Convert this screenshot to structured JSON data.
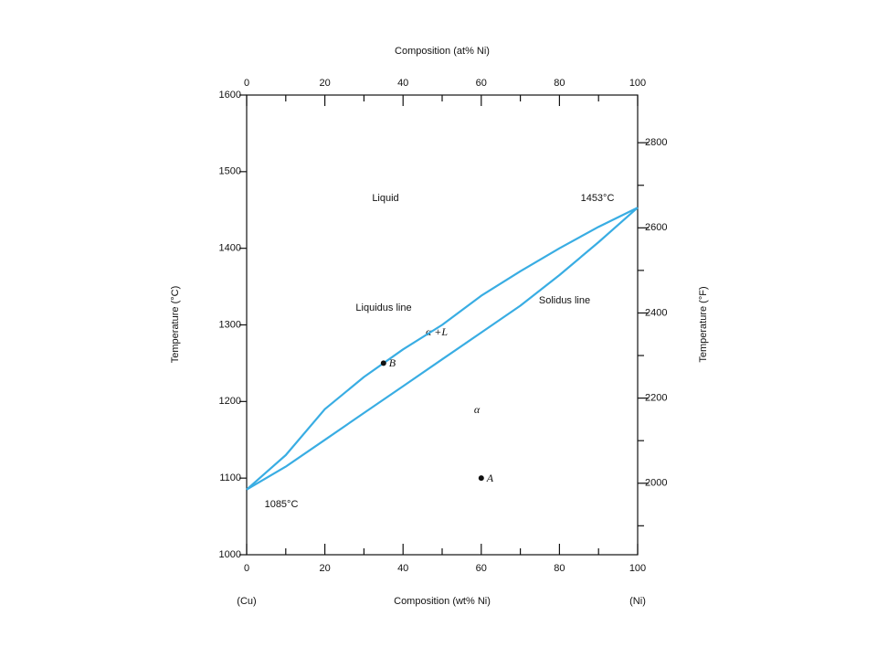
{
  "chart_data": {
    "type": "line",
    "xlabel": "Composition (wt% Ni)",
    "x2label": "Composition (at% Ni)",
    "ylabel": "Temperature (°C)",
    "y2label": "Temperature (°F)",
    "xlim": [
      0,
      100
    ],
    "xticks": [
      0,
      20,
      40,
      60,
      80,
      100
    ],
    "xminorticks": [
      10,
      30,
      50,
      70,
      90
    ],
    "x2lim": [
      0,
      100
    ],
    "x2ticks": [
      0,
      20,
      40,
      60,
      80,
      100
    ],
    "x2minorticks": [
      10,
      30,
      50,
      70,
      90
    ],
    "ylim": [
      1000,
      1600
    ],
    "yticks": [
      1000,
      1100,
      1200,
      1300,
      1400,
      1500,
      1600
    ],
    "y2lim": [
      1832,
      2912
    ],
    "y2ticks": [
      2000,
      2200,
      2400,
      2600,
      2800
    ],
    "y2minorticks": [
      1900,
      2100,
      2300,
      2500,
      2700
    ],
    "x": [
      0,
      10,
      20,
      30,
      40,
      50,
      60,
      70,
      80,
      90,
      100
    ],
    "series": [
      {
        "name": "Liquidus line",
        "color": "#39ade3",
        "values": [
          1085,
          1130,
          1190,
          1232,
          1268,
          1300,
          1338,
          1370,
          1400,
          1428,
          1453
        ]
      },
      {
        "name": "Solidus line",
        "color": "#39ade3",
        "values": [
          1085,
          1115,
          1150,
          1185,
          1220,
          1255,
          1290,
          1325,
          1365,
          1408,
          1453
        ]
      }
    ],
    "points": [
      {
        "label": "A",
        "x": 60,
        "y": 1100
      },
      {
        "label": "B",
        "x": 35,
        "y": 1250
      }
    ],
    "annotations": [
      "Liquid",
      "1453°C",
      "α +L",
      "α",
      "1085°C",
      "(Cu)",
      "(Ni)"
    ]
  }
}
